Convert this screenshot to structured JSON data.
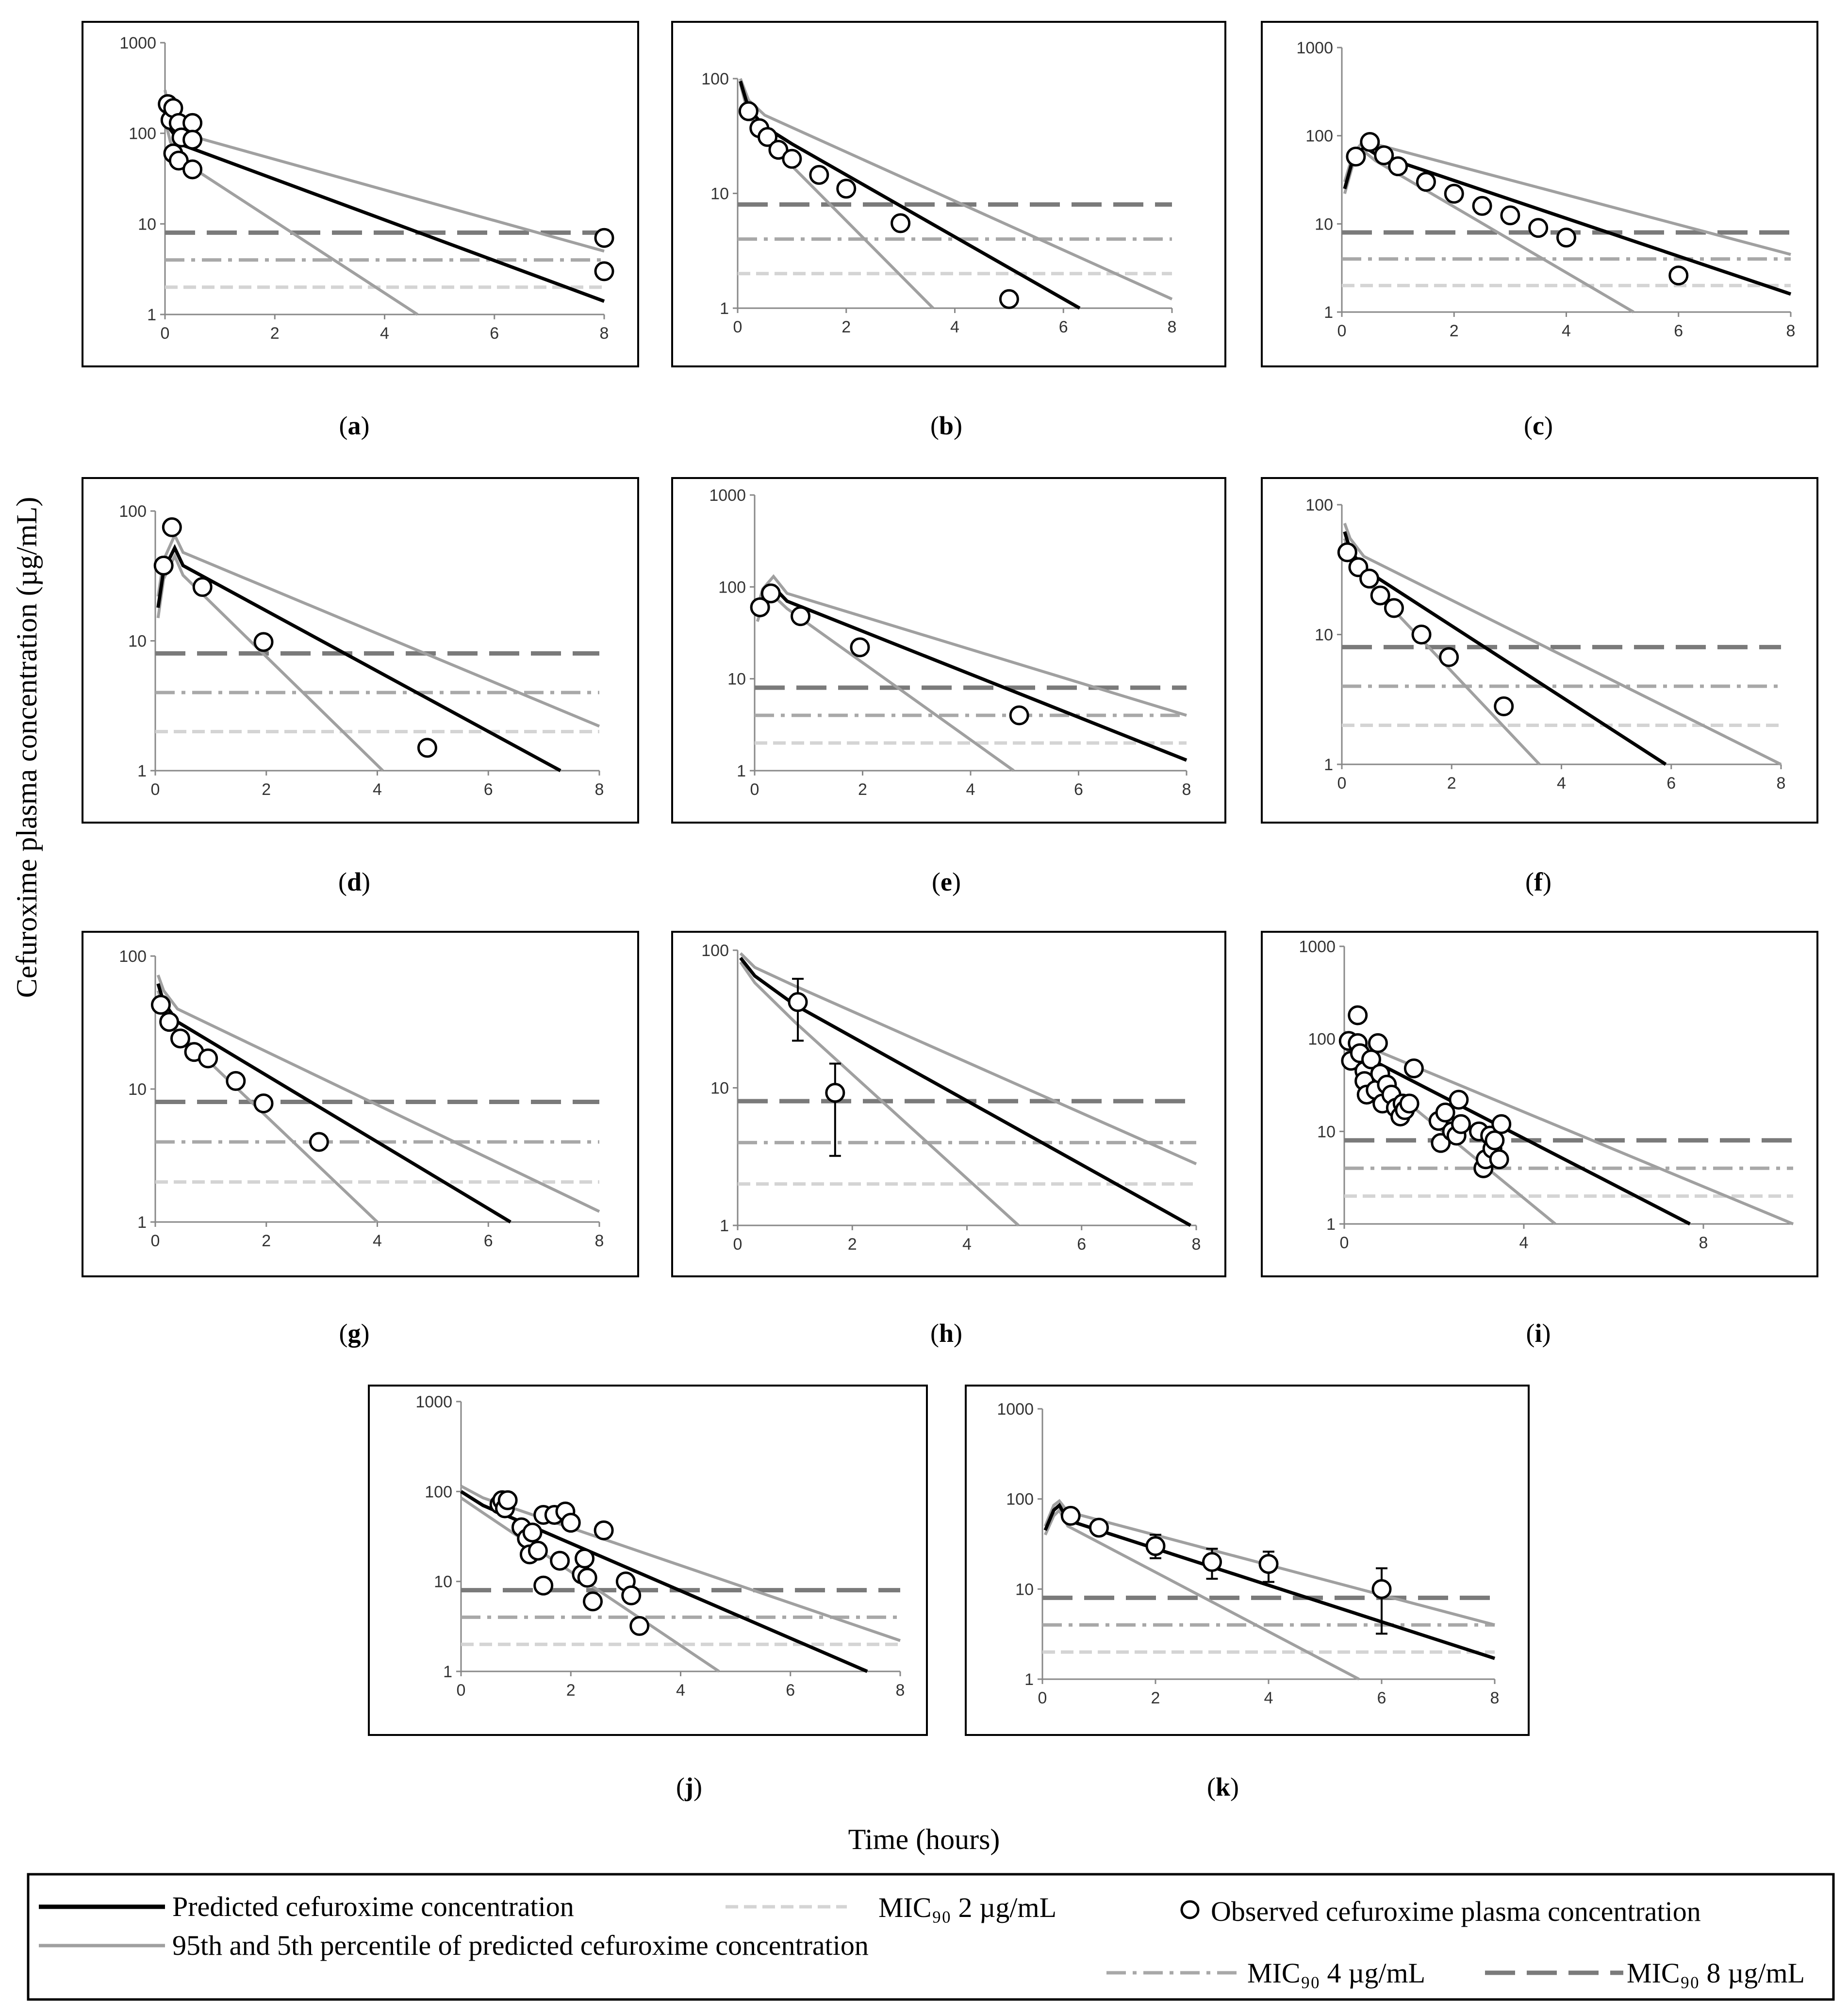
{
  "figure": {
    "y_axis_title": "Cefuroxime plasma concentration (µg/mL)",
    "x_axis_title": "Time (hours)"
  },
  "legend": {
    "predicted": "Predicted cefuroxime concentration",
    "percentiles": "95th and 5th percentile of predicted cefuroxime concentration",
    "mic2": "MIC₉₀ 2 µg/mL",
    "mic4": "MIC₉₀ 4 µg/mL",
    "mic8": "MIC₉₀ 8 µg/mL",
    "observed": "Observed cefuroxime plasma concentration"
  },
  "colors": {
    "predicted": "#000000",
    "percentile": "#a0a0a0",
    "mic8": "#7a7a7a",
    "mic4": "#a8a8a8",
    "mic2": "#d4d4d4",
    "frame": "#000000"
  },
  "chart_data": [
    {
      "id": "a",
      "label": "(a)",
      "type": "scatter",
      "yscale": "log",
      "ylim": [
        1,
        1000
      ],
      "xlim": [
        0,
        8
      ],
      "xticks": [
        0,
        2,
        4,
        6,
        8
      ],
      "yticks": [
        1,
        10,
        100,
        1000
      ],
      "predicted": [
        [
          0,
          200
        ],
        [
          0.1,
          110
        ],
        [
          0.3,
          75
        ],
        [
          8,
          1.4
        ]
      ],
      "upper": [
        [
          0,
          300
        ],
        [
          0.1,
          150
        ],
        [
          0.3,
          100
        ],
        [
          8,
          5
        ]
      ],
      "lower": [
        [
          0,
          140
        ],
        [
          0.1,
          80
        ],
        [
          0.3,
          50
        ],
        [
          4.6,
          1
        ]
      ],
      "mic": [
        8,
        4,
        2
      ],
      "observed": [
        [
          0.05,
          210
        ],
        [
          0.1,
          140
        ],
        [
          0.15,
          190
        ],
        [
          0.25,
          130
        ],
        [
          0.3,
          90
        ],
        [
          0.5,
          130
        ],
        [
          0.5,
          85
        ],
        [
          0.15,
          60
        ],
        [
          0.25,
          50
        ],
        [
          0.5,
          40
        ],
        [
          8,
          7
        ],
        [
          8,
          3
        ]
      ],
      "errorbars": []
    },
    {
      "id": "b",
      "label": "(b)",
      "type": "scatter",
      "yscale": "log",
      "ylim": [
        1,
        100
      ],
      "xlim": [
        0,
        8
      ],
      "xticks": [
        0,
        2,
        4,
        6,
        8
      ],
      "yticks": [
        1,
        10,
        100
      ],
      "predicted": [
        [
          0.05,
          95
        ],
        [
          0.2,
          55
        ],
        [
          0.5,
          38
        ],
        [
          1,
          27
        ],
        [
          6.3,
          1
        ]
      ],
      "upper": [
        [
          0.05,
          100
        ],
        [
          0.2,
          65
        ],
        [
          0.5,
          48
        ],
        [
          8,
          1.2
        ]
      ],
      "lower": [
        [
          0.05,
          90
        ],
        [
          0.2,
          48
        ],
        [
          0.5,
          30
        ],
        [
          3.6,
          1
        ]
      ],
      "mic": [
        8,
        4,
        2
      ],
      "observed": [
        [
          0.2,
          52
        ],
        [
          0.4,
          37
        ],
        [
          0.55,
          31
        ],
        [
          0.75,
          24
        ],
        [
          1,
          20
        ],
        [
          1.5,
          14.5
        ],
        [
          2,
          11
        ],
        [
          3,
          5.5
        ],
        [
          5,
          1.2
        ]
      ],
      "errorbars": []
    },
    {
      "id": "c",
      "label": "(c)",
      "type": "scatter",
      "yscale": "log",
      "ylim": [
        1,
        1000
      ],
      "xlim": [
        0,
        8
      ],
      "xticks": [
        0,
        2,
        4,
        6,
        8
      ],
      "yticks": [
        1,
        10,
        100,
        1000
      ],
      "predicted": [
        [
          0.05,
          25
        ],
        [
          0.2,
          55
        ],
        [
          0.4,
          75
        ],
        [
          0.6,
          62
        ],
        [
          8,
          1.6
        ]
      ],
      "upper": [
        [
          0.05,
          30
        ],
        [
          0.2,
          62
        ],
        [
          0.4,
          90
        ],
        [
          0.6,
          80
        ],
        [
          8,
          4.5
        ]
      ],
      "lower": [
        [
          0.05,
          22
        ],
        [
          0.2,
          48
        ],
        [
          0.4,
          66
        ],
        [
          0.6,
          52
        ],
        [
          5.2,
          1
        ]
      ],
      "mic": [
        8,
        4,
        2
      ],
      "observed": [
        [
          0.25,
          58
        ],
        [
          0.5,
          85
        ],
        [
          0.75,
          60
        ],
        [
          1,
          45
        ],
        [
          1.5,
          30
        ],
        [
          2,
          22
        ],
        [
          2.5,
          16
        ],
        [
          3,
          12.5
        ],
        [
          3.5,
          9
        ],
        [
          4,
          7
        ],
        [
          6,
          2.6
        ]
      ],
      "errorbars": []
    },
    {
      "id": "d",
      "label": "(d)",
      "type": "scatter",
      "yscale": "log",
      "ylim": [
        1,
        100
      ],
      "xlim": [
        0,
        8
      ],
      "xticks": [
        0,
        2,
        4,
        6,
        8
      ],
      "yticks": [
        1,
        10,
        100
      ],
      "predicted": [
        [
          0.05,
          18
        ],
        [
          0.15,
          35
        ],
        [
          0.35,
          52
        ],
        [
          0.5,
          38
        ],
        [
          7.3,
          1
        ]
      ],
      "upper": [
        [
          0.05,
          22
        ],
        [
          0.15,
          42
        ],
        [
          0.35,
          65
        ],
        [
          0.5,
          48
        ],
        [
          8,
          2.2
        ]
      ],
      "lower": [
        [
          0.05,
          15
        ],
        [
          0.15,
          30
        ],
        [
          0.35,
          45
        ],
        [
          0.5,
          32
        ],
        [
          4.1,
          1
        ]
      ],
      "mic": [
        8,
        4,
        2
      ],
      "observed": [
        [
          0.15,
          38
        ],
        [
          0.3,
          75
        ],
        [
          0.85,
          26
        ],
        [
          1.95,
          9.8
        ],
        [
          4.9,
          1.5
        ]
      ],
      "errorbars": []
    },
    {
      "id": "e",
      "label": "(e)",
      "type": "scatter",
      "yscale": "log",
      "ylim": [
        1,
        1000
      ],
      "xlim": [
        0,
        8
      ],
      "xticks": [
        0,
        2,
        4,
        6,
        8
      ],
      "yticks": [
        1,
        10,
        100,
        1000
      ],
      "predicted": [
        [
          0.05,
          50
        ],
        [
          0.15,
          75
        ],
        [
          0.35,
          100
        ],
        [
          0.6,
          70
        ],
        [
          8,
          1.3
        ]
      ],
      "upper": [
        [
          0.05,
          60
        ],
        [
          0.15,
          95
        ],
        [
          0.35,
          130
        ],
        [
          0.6,
          85
        ],
        [
          8,
          4
        ]
      ],
      "lower": [
        [
          0.05,
          42
        ],
        [
          0.15,
          62
        ],
        [
          0.35,
          80
        ],
        [
          0.6,
          58
        ],
        [
          4.8,
          1
        ]
      ],
      "mic": [
        8,
        4,
        2
      ],
      "observed": [
        [
          0.1,
          60
        ],
        [
          0.3,
          85
        ],
        [
          0.85,
          48
        ],
        [
          1.95,
          22
        ],
        [
          4.9,
          4
        ]
      ],
      "errorbars": []
    },
    {
      "id": "f",
      "label": "(f)",
      "type": "scatter",
      "yscale": "log",
      "ylim": [
        1,
        100
      ],
      "xlim": [
        0,
        8
      ],
      "xticks": [
        0,
        2,
        4,
        6,
        8
      ],
      "yticks": [
        1,
        10,
        100
      ],
      "predicted": [
        [
          0.05,
          62
        ],
        [
          0.15,
          45
        ],
        [
          0.4,
          32
        ],
        [
          5.9,
          1
        ]
      ],
      "upper": [
        [
          0.05,
          72
        ],
        [
          0.15,
          55
        ],
        [
          0.4,
          40
        ],
        [
          8,
          1
        ]
      ],
      "lower": [
        [
          0.05,
          55
        ],
        [
          0.15,
          40
        ],
        [
          0.4,
          27
        ],
        [
          3.6,
          1
        ]
      ],
      "mic": [
        8,
        4,
        2
      ],
      "observed": [
        [
          0.1,
          43
        ],
        [
          0.3,
          33
        ],
        [
          0.5,
          27
        ],
        [
          0.7,
          20
        ],
        [
          0.95,
          16
        ],
        [
          1.45,
          10
        ],
        [
          1.95,
          6.7
        ],
        [
          2.95,
          2.8
        ]
      ],
      "errorbars": []
    },
    {
      "id": "g",
      "label": "(g)",
      "type": "scatter",
      "yscale": "log",
      "ylim": [
        1,
        100
      ],
      "xlim": [
        0,
        8
      ],
      "xticks": [
        0,
        2,
        4,
        6,
        8
      ],
      "yticks": [
        1,
        10,
        100
      ],
      "predicted": [
        [
          0.05,
          62
        ],
        [
          0.15,
          45
        ],
        [
          0.4,
          32
        ],
        [
          6.4,
          1
        ]
      ],
      "upper": [
        [
          0.05,
          72
        ],
        [
          0.15,
          55
        ],
        [
          0.4,
          40
        ],
        [
          8,
          1.2
        ]
      ],
      "lower": [
        [
          0.05,
          55
        ],
        [
          0.15,
          40
        ],
        [
          0.4,
          27
        ],
        [
          4,
          1
        ]
      ],
      "mic": [
        8,
        4,
        2
      ],
      "observed": [
        [
          0.1,
          43
        ],
        [
          0.25,
          32
        ],
        [
          0.45,
          24
        ],
        [
          0.7,
          19
        ],
        [
          0.95,
          17
        ],
        [
          1.45,
          11.5
        ],
        [
          1.95,
          7.8
        ],
        [
          2.95,
          4
        ]
      ],
      "errorbars": []
    },
    {
      "id": "h",
      "label": "(h)",
      "type": "scatter",
      "yscale": "log",
      "ylim": [
        1,
        100
      ],
      "xlim": [
        0,
        8
      ],
      "xticks": [
        0,
        2,
        4,
        6,
        8
      ],
      "yticks": [
        1,
        10,
        100
      ],
      "predicted": [
        [
          0.05,
          88
        ],
        [
          0.3,
          65
        ],
        [
          1,
          40
        ],
        [
          7.9,
          1
        ]
      ],
      "upper": [
        [
          0.05,
          95
        ],
        [
          0.3,
          75
        ],
        [
          1,
          55
        ],
        [
          8,
          2.8
        ]
      ],
      "lower": [
        [
          0.05,
          82
        ],
        [
          0.3,
          58
        ],
        [
          1,
          30
        ],
        [
          4.9,
          1
        ]
      ],
      "mic": [
        8,
        4,
        2
      ],
      "observed": [
        [
          1.05,
          42
        ],
        [
          1.7,
          9.2
        ]
      ],
      "errorbars": [
        [
          1.05,
          22,
          62
        ],
        [
          1.7,
          3.2,
          15
        ]
      ]
    },
    {
      "id": "i",
      "label": "(i)",
      "type": "scatter",
      "yscale": "log",
      "ylim": [
        1,
        1000
      ],
      "xlim": [
        0,
        10
      ],
      "xticks": [
        0,
        4,
        8
      ],
      "yticks": [
        1,
        10,
        100,
        1000
      ],
      "predicted": [
        [
          0,
          100
        ],
        [
          0.2,
          75
        ],
        [
          7.7,
          1
        ]
      ],
      "upper": [
        [
          0,
          120
        ],
        [
          0.2,
          95
        ],
        [
          10,
          1
        ]
      ],
      "lower": [
        [
          0,
          85
        ],
        [
          0.2,
          62
        ],
        [
          4.7,
          1
        ]
      ],
      "mic": [
        8,
        4,
        2
      ],
      "observed": [
        [
          0.1,
          95
        ],
        [
          0.15,
          58
        ],
        [
          0.3,
          180
        ],
        [
          0.3,
          90
        ],
        [
          0.35,
          70
        ],
        [
          0.45,
          45
        ],
        [
          0.45,
          35
        ],
        [
          0.5,
          25
        ],
        [
          0.6,
          60
        ],
        [
          0.7,
          28
        ],
        [
          0.75,
          90
        ],
        [
          0.8,
          42
        ],
        [
          0.85,
          20
        ],
        [
          0.95,
          32
        ],
        [
          1.05,
          25
        ],
        [
          1.15,
          18
        ],
        [
          1.25,
          14.5
        ],
        [
          1.3,
          20
        ],
        [
          1.35,
          17
        ],
        [
          1.45,
          20
        ],
        [
          1.55,
          48
        ],
        [
          2.1,
          13
        ],
        [
          2.15,
          7.5
        ],
        [
          2.25,
          16
        ],
        [
          2.4,
          10
        ],
        [
          2.5,
          9
        ],
        [
          2.55,
          22
        ],
        [
          2.6,
          12
        ],
        [
          3.0,
          10
        ],
        [
          3.1,
          4
        ],
        [
          3.15,
          5
        ],
        [
          3.25,
          9
        ],
        [
          3.3,
          6.5
        ],
        [
          3.35,
          8
        ],
        [
          3.45,
          5
        ],
        [
          3.5,
          12
        ]
      ],
      "errorbars": []
    },
    {
      "id": "j",
      "label": "(j)",
      "type": "scatter",
      "yscale": "log",
      "ylim": [
        1,
        1000
      ],
      "xlim": [
        0,
        8
      ],
      "xticks": [
        0,
        2,
        4,
        6,
        8
      ],
      "yticks": [
        1,
        10,
        100,
        1000
      ],
      "predicted": [
        [
          0,
          100
        ],
        [
          0.4,
          70
        ],
        [
          7.4,
          1
        ]
      ],
      "upper": [
        [
          0,
          115
        ],
        [
          0.4,
          85
        ],
        [
          8,
          2.2
        ]
      ],
      "lower": [
        [
          0,
          85
        ],
        [
          0.4,
          58
        ],
        [
          4.7,
          1
        ]
      ],
      "mic": [
        8,
        4,
        2
      ],
      "observed": [
        [
          0.7,
          72
        ],
        [
          0.75,
          80
        ],
        [
          0.8,
          65
        ],
        [
          0.85,
          80
        ],
        [
          1.1,
          40
        ],
        [
          1.2,
          30
        ],
        [
          1.25,
          20
        ],
        [
          1.3,
          35
        ],
        [
          1.4,
          22
        ],
        [
          1.5,
          55
        ],
        [
          1.5,
          9
        ],
        [
          1.7,
          55
        ],
        [
          1.8,
          17
        ],
        [
          1.9,
          60
        ],
        [
          2.0,
          45
        ],
        [
          2.2,
          12
        ],
        [
          2.25,
          18
        ],
        [
          2.3,
          11
        ],
        [
          2.4,
          6
        ],
        [
          2.6,
          37
        ],
        [
          3.0,
          10
        ],
        [
          3.1,
          7
        ],
        [
          3.25,
          3.2
        ]
      ],
      "errorbars": []
    },
    {
      "id": "k",
      "label": "(k)",
      "type": "scatter",
      "yscale": "log",
      "ylim": [
        1,
        1000
      ],
      "xlim": [
        0,
        8
      ],
      "xticks": [
        0,
        2,
        4,
        6,
        8
      ],
      "yticks": [
        1,
        10,
        100,
        1000
      ],
      "predicted": [
        [
          0.05,
          45
        ],
        [
          0.2,
          75
        ],
        [
          0.3,
          85
        ],
        [
          0.45,
          58
        ],
        [
          8,
          1.7
        ]
      ],
      "upper": [
        [
          0.05,
          50
        ],
        [
          0.2,
          85
        ],
        [
          0.3,
          95
        ],
        [
          0.45,
          72
        ],
        [
          8,
          4
        ]
      ],
      "lower": [
        [
          0.05,
          40
        ],
        [
          0.2,
          65
        ],
        [
          0.3,
          75
        ],
        [
          0.45,
          50
        ],
        [
          5.6,
          1
        ]
      ],
      "mic": [
        8,
        4,
        2
      ],
      "observed": [
        [
          0.5,
          65
        ],
        [
          1,
          48
        ],
        [
          2,
          30
        ],
        [
          3,
          20
        ],
        [
          4,
          19
        ],
        [
          6,
          10
        ]
      ],
      "errorbars": [
        [
          2,
          22,
          40
        ],
        [
          3,
          13,
          28
        ],
        [
          4,
          12,
          26
        ],
        [
          6,
          3.2,
          17
        ]
      ]
    }
  ]
}
